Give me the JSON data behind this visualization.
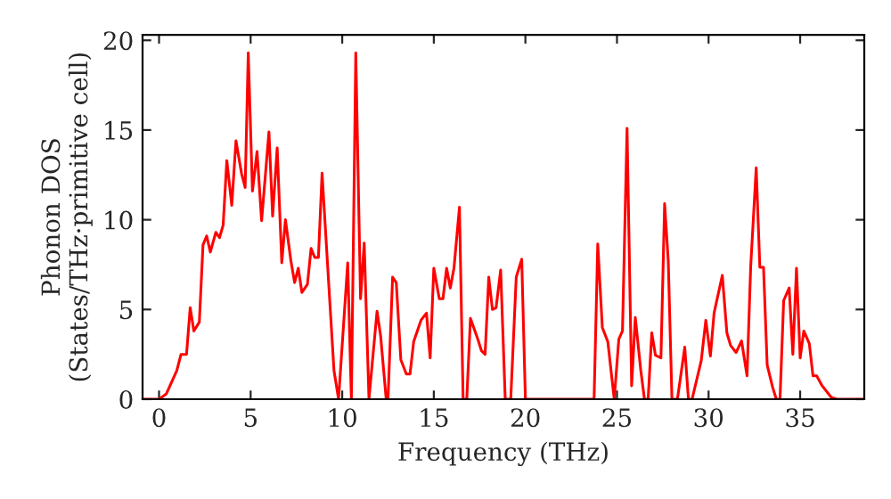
{
  "chart_data": {
    "type": "line",
    "xlabel": "Frequency (THz)",
    "ylabel": "Phonon DOS\n(States/THz·primitive cell)",
    "x": [
      -0.9,
      0,
      0.4,
      0.97,
      1.2,
      1.5,
      1.7,
      1.9,
      2.2,
      2.4,
      2.6,
      2.8,
      3.1,
      3.3,
      3.5,
      3.7,
      3.97,
      4.2,
      4.5,
      4.7,
      4.87,
      5.1,
      5.35,
      5.6,
      6.0,
      6.2,
      6.45,
      6.7,
      6.9,
      7.2,
      7.4,
      7.6,
      7.8,
      8.1,
      8.3,
      8.5,
      8.7,
      8.9,
      9.3,
      9.55,
      9.8,
      10.3,
      10.5,
      10.74,
      11.0,
      11.2,
      11.46,
      11.9,
      12.1,
      12.4,
      12.5,
      12.75,
      12.95,
      13.2,
      13.5,
      13.7,
      13.9,
      14.3,
      14.6,
      14.8,
      15.0,
      15.3,
      15.5,
      15.7,
      15.9,
      16.1,
      16.4,
      16.6,
      16.8,
      17.0,
      17.4,
      17.6,
      17.8,
      18.0,
      18.2,
      18.4,
      18.65,
      18.9,
      19.2,
      19.5,
      19.8,
      20.0,
      23.75,
      23.95,
      24.2,
      24.5,
      24.85,
      25.1,
      25.3,
      25.55,
      25.8,
      26.0,
      26.3,
      26.5,
      26.7,
      26.9,
      27.1,
      27.4,
      27.6,
      27.8,
      28.0,
      28.3,
      28.7,
      28.9,
      29.1,
      29.6,
      29.85,
      30.1,
      30.3,
      30.75,
      31.0,
      31.2,
      31.5,
      31.8,
      32.1,
      32.3,
      32.6,
      32.8,
      33.0,
      33.2,
      33.5,
      33.7,
      33.9,
      34.1,
      34.4,
      34.6,
      34.8,
      35.0,
      35.2,
      35.5,
      35.7,
      35.9,
      36.2,
      36.7,
      37.0,
      38.5
    ],
    "series": [
      {
        "color": "#ff0000",
        "values": [
          0,
          0,
          0.3,
          1.6,
          2.5,
          2.5,
          5.1,
          3.8,
          4.3,
          8.6,
          9.1,
          8.2,
          9.3,
          9.0,
          9.7,
          13.3,
          10.8,
          14.4,
          12.6,
          11.8,
          19.3,
          11.6,
          13.8,
          9.95,
          14.9,
          10.2,
          14.0,
          7.6,
          10.0,
          7.7,
          6.5,
          7.3,
          5.95,
          6.4,
          8.4,
          7.9,
          7.9,
          12.6,
          5.8,
          1.6,
          0,
          7.6,
          0,
          19.3,
          5.6,
          8.7,
          0,
          4.9,
          3.5,
          0,
          0,
          6.8,
          6.5,
          2.2,
          1.4,
          1.4,
          3.2,
          4.4,
          4.8,
          2.3,
          7.3,
          5.6,
          5.6,
          7.3,
          6.2,
          7.3,
          10.7,
          0,
          0,
          4.5,
          3.35,
          2.7,
          2.5,
          6.8,
          5.0,
          5.1,
          7.2,
          0,
          0,
          6.8,
          7.8,
          0,
          0,
          8.65,
          4.0,
          3.2,
          0,
          3.35,
          3.8,
          15.1,
          0.75,
          4.55,
          1.6,
          0,
          0,
          3.7,
          2.45,
          2.3,
          10.9,
          7.7,
          0,
          0,
          2.9,
          0,
          0,
          2.15,
          4.4,
          2.4,
          4.8,
          6.9,
          3.7,
          3.0,
          2.6,
          3.25,
          1.3,
          7.4,
          12.9,
          7.35,
          7.35,
          1.9,
          0.65,
          0,
          0,
          5.5,
          6.2,
          2.5,
          7.3,
          2.3,
          3.8,
          3.1,
          1.3,
          1.3,
          0.75,
          0.1,
          0,
          0
        ]
      }
    ],
    "xlim": [
      -0.9,
      38.5
    ],
    "ylim": [
      0,
      20.3
    ],
    "xticks": [
      0,
      5,
      10,
      15,
      20,
      25,
      30,
      35
    ],
    "yticks": [
      0,
      5,
      10,
      15,
      20
    ],
    "grid": false,
    "marker": "none",
    "line_style": "solid"
  }
}
